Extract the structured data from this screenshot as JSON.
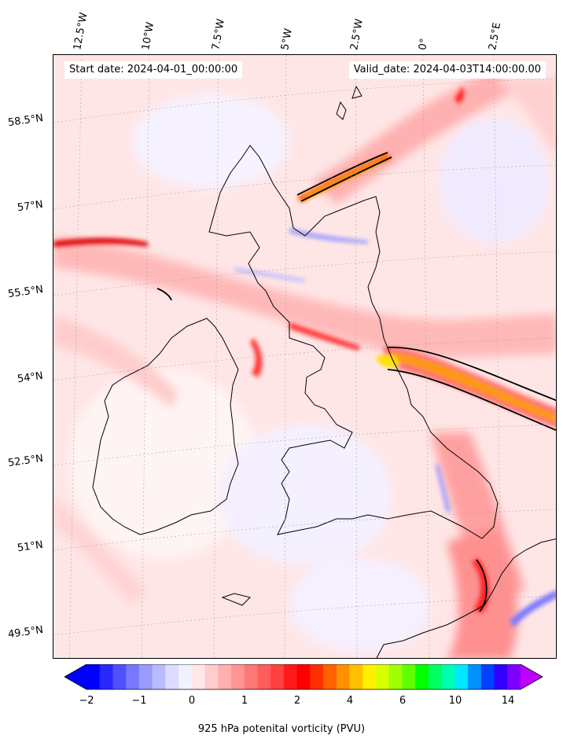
{
  "map": {
    "start_label": "Start date: 2024-04-01_00:00:00",
    "valid_label": "Valid_date: 2024-04-03T14:00:00.00",
    "longitude_labels": [
      "12.5°W",
      "10°W",
      "7.5°W",
      "5°W",
      "2.5°W",
      "0°",
      "2.5°E"
    ],
    "latitude_labels": [
      "58.5°N",
      "57°N",
      "55.5°N",
      "54°N",
      "52.5°N",
      "51°N",
      "49.5°N"
    ],
    "colorbar": {
      "label": "925 hPa potenital vorticity (PVU)",
      "tick_labels": [
        "−2",
        "−1",
        "0",
        "1",
        "2",
        "4",
        "6",
        "10",
        "14"
      ],
      "colors": [
        "#0000ff",
        "#2828ff",
        "#5050ff",
        "#7878ff",
        "#9a9aff",
        "#babaff",
        "#dcdcff",
        "#f2f2ff",
        "#ffe8e8",
        "#ffcccc",
        "#ffb0b0",
        "#ff9494",
        "#ff7878",
        "#ff5c5c",
        "#ff4040",
        "#ff1a1a",
        "#ff0000",
        "#ff3000",
        "#ff6000",
        "#ff9000",
        "#ffc000",
        "#fff000",
        "#d8ff00",
        "#a0ff00",
        "#60ff00",
        "#00ff00",
        "#00ff60",
        "#00ffb0",
        "#00e8ff",
        "#0090ff",
        "#0040ff",
        "#3000ff",
        "#8000ff"
      ],
      "under_color": "#0000ff",
      "over_color": "#c000ff"
    }
  }
}
